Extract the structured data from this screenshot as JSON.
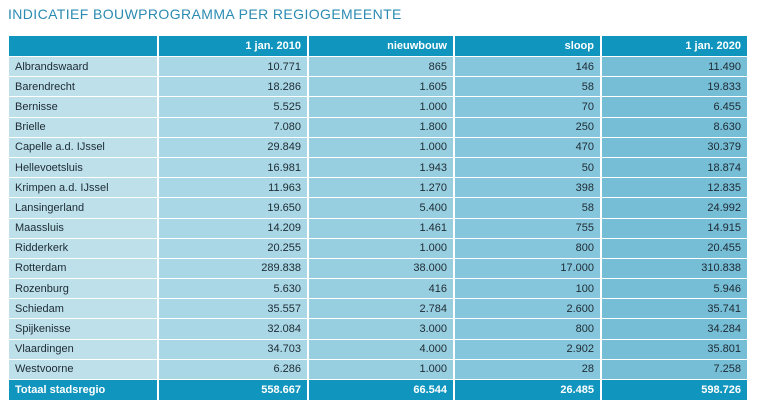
{
  "title": "INDICATIEF BOUWPROGRAMMA PER REGIOGEMEENTE",
  "columns": [
    "",
    "1 jan. 2010",
    "nieuwbouw",
    "sloop",
    "1 jan. 2020"
  ],
  "rows": [
    [
      "Albrandswaard",
      "10.771",
      "865",
      "146",
      "11.490"
    ],
    [
      "Barendrecht",
      "18.286",
      "1.605",
      "58",
      "19.833"
    ],
    [
      "Bernisse",
      "5.525",
      "1.000",
      "70",
      "6.455"
    ],
    [
      "Brielle",
      "7.080",
      "1.800",
      "250",
      "8.630"
    ],
    [
      "Capelle a.d. IJssel",
      "29.849",
      "1.000",
      "470",
      "30.379"
    ],
    [
      "Hellevoetsluis",
      "16.981",
      "1.943",
      "50",
      "18.874"
    ],
    [
      "Krimpen a.d. IJssel",
      "11.963",
      "1.270",
      "398",
      "12.835"
    ],
    [
      "Lansingerland",
      "19.650",
      "5.400",
      "58",
      "24.992"
    ],
    [
      "Maassluis",
      "14.209",
      "1.461",
      "755",
      "14.915"
    ],
    [
      "Ridderkerk",
      "20.255",
      "1.000",
      "800",
      "20.455"
    ],
    [
      "Rotterdam",
      "289.838",
      "38.000",
      "17.000",
      "310.838"
    ],
    [
      "Rozenburg",
      "5.630",
      "416",
      "100",
      "5.946"
    ],
    [
      "Schiedam",
      "35.557",
      "2.784",
      "2.600",
      "35.741"
    ],
    [
      "Spijkenisse",
      "32.084",
      "3.000",
      "800",
      "34.284"
    ],
    [
      "Vlaardingen",
      "34.703",
      "4.000",
      "2.902",
      "35.801"
    ],
    [
      "Westvoorne",
      "6.286",
      "1.000",
      "28",
      "7.258"
    ]
  ],
  "total": [
    "Totaal stadsregio",
    "558.667",
    "66.544",
    "26.485",
    "598.726"
  ],
  "colors": {
    "header": "#0f95be",
    "title": "#2b8bb2",
    "name_col": "#bde0ea",
    "col1": "#a9d7e5",
    "col2": "#98cfe0",
    "col3": "#86c6dc",
    "col4": "#76bdd6"
  }
}
